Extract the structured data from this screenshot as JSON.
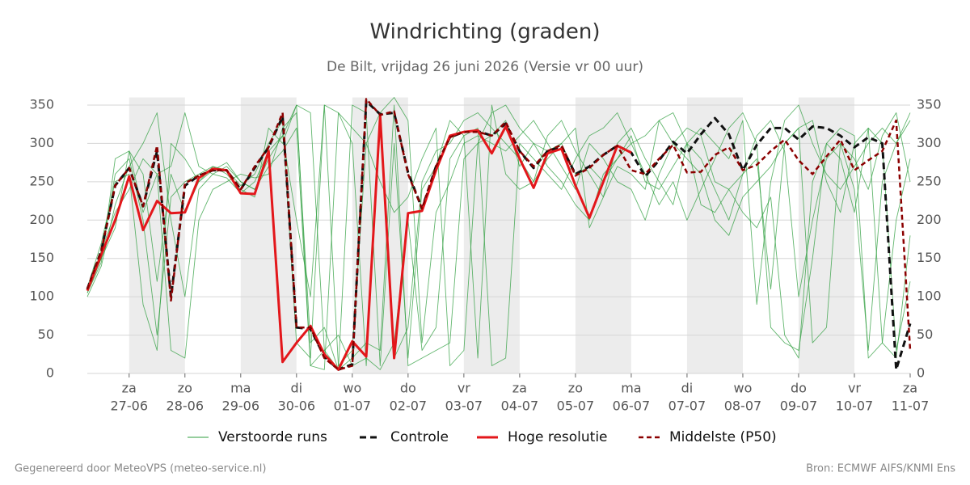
{
  "chart_data": {
    "type": "line",
    "title": "Windrichting (graden)",
    "subtitle": "De Bilt, vrijdag 26 juni 2026 (Versie vr 00 uur)",
    "footer_left": "Gegenereerd door MeteoVPS (meteo-service.nl)",
    "footer_right": "Bron: ECMWF AIFS/KNMI Ens",
    "xlim": [
      -0.75,
      14
    ],
    "ylim": [
      0,
      360
    ],
    "yticks": [
      0,
      50,
      100,
      150,
      200,
      250,
      300,
      350
    ],
    "grid": true,
    "xticks": [
      {
        "value": 0,
        "label": "za",
        "date": "27-06"
      },
      {
        "value": 1,
        "label": "zo",
        "date": "28-06"
      },
      {
        "value": 2,
        "label": "ma",
        "date": "29-06"
      },
      {
        "value": 3,
        "label": "di",
        "date": "30-06"
      },
      {
        "value": 4,
        "label": "wo",
        "date": "01-07"
      },
      {
        "value": 5,
        "label": "do",
        "date": "02-07"
      },
      {
        "value": 6,
        "label": "vr",
        "date": "03-07"
      },
      {
        "value": 7,
        "label": "za",
        "date": "04-07"
      },
      {
        "value": 8,
        "label": "zo",
        "date": "05-07"
      },
      {
        "value": 9,
        "label": "ma",
        "date": "06-07"
      },
      {
        "value": 10,
        "label": "di",
        "date": "07-07"
      },
      {
        "value": 11,
        "label": "wo",
        "date": "08-07"
      },
      {
        "value": 12,
        "label": "do",
        "date": "09-07"
      },
      {
        "value": 13,
        "label": "vr",
        "date": "10-07"
      },
      {
        "value": 14,
        "label": "za",
        "date": "11-07"
      }
    ],
    "x": [
      -0.75,
      -0.5,
      -0.25,
      0,
      0.25,
      0.5,
      0.75,
      1,
      1.25,
      1.5,
      1.75,
      2,
      2.25,
      2.5,
      2.75,
      3,
      3.25,
      3.5,
      3.75,
      4,
      4.25,
      4.5,
      4.75,
      5,
      5.25,
      5.5,
      5.75,
      6,
      6.25,
      6.5,
      6.75,
      7,
      7.25,
      7.5,
      7.75,
      8,
      8.25,
      8.5,
      8.75,
      9,
      9.25,
      9.5,
      9.75,
      10,
      10.25,
      10.5,
      10.75,
      11,
      11.25,
      11.5,
      11.75,
      12,
      12.25,
      12.5,
      12.75,
      13,
      13.25,
      13.5,
      13.75,
      14
    ],
    "perturbed": {
      "name": "Verstoorde runs",
      "color": "#2e9e3e",
      "runs": [
        [
          105,
          150,
          260,
          280,
          200,
          50,
          230,
          250,
          260,
          270,
          265,
          245,
          260,
          300,
          330,
          40,
          20,
          350,
          10,
          30,
          300,
          340,
          20,
          60,
          250,
          290,
          300,
          330,
          340,
          320,
          300,
          280,
          250,
          310,
          330,
          290,
          260,
          230,
          300,
          320,
          280,
          250,
          220,
          300,
          280,
          240,
          200,
          260,
          310,
          330,
          290,
          100,
          200,
          280,
          300,
          240,
          30,
          250,
          300,
          330
        ],
        [
          100,
          140,
          220,
          270,
          300,
          340,
          200,
          100,
          240,
          260,
          270,
          250,
          240,
          280,
          310,
          350,
          340,
          30,
          50,
          10,
          20,
          5,
          40,
          200,
          30,
          60,
          280,
          310,
          320,
          10,
          20,
          300,
          280,
          260,
          240,
          280,
          310,
          320,
          340,
          300,
          260,
          220,
          250,
          200,
          240,
          280,
          320,
          340,
          300,
          60,
          40,
          30,
          150,
          300,
          320,
          310,
          20,
          40,
          200,
          280
        ],
        [
          112,
          170,
          250,
          260,
          90,
          30,
          300,
          280,
          250,
          270,
          260,
          240,
          230,
          320,
          300,
          350,
          10,
          5,
          340,
          320,
          300,
          250,
          210,
          230,
          280,
          320,
          10,
          30,
          300,
          340,
          350,
          320,
          300,
          270,
          250,
          220,
          200,
          260,
          280,
          300,
          310,
          330,
          340,
          300,
          220,
          210,
          240,
          260,
          280,
          110,
          300,
          320,
          330,
          250,
          210,
          300,
          320,
          40,
          20,
          180
        ],
        [
          108,
          160,
          210,
          240,
          280,
          260,
          30,
          20,
          200,
          240,
          250,
          260,
          255,
          260,
          320,
          340,
          40,
          60,
          5,
          350,
          340,
          10,
          300,
          20,
          240,
          270,
          330,
          310,
          20,
          350,
          260,
          240,
          250,
          280,
          300,
          320,
          190,
          230,
          270,
          260,
          240,
          330,
          300,
          280,
          260,
          200,
          180,
          230,
          250,
          270,
          300,
          320,
          40,
          60,
          300,
          280,
          240,
          310,
          340,
          250
        ],
        [
          110,
          150,
          190,
          290,
          260,
          120,
          260,
          210,
          250,
          265,
          275,
          250,
          240,
          270,
          290,
          320,
          10,
          30,
          5,
          20,
          40,
          30,
          350,
          10,
          20,
          30,
          40,
          280,
          300,
          310,
          330,
          270,
          300,
          290,
          300,
          260,
          270,
          250,
          280,
          310,
          250,
          240,
          270,
          300,
          320,
          300,
          280,
          330,
          90,
          250,
          330,
          350,
          300,
          260,
          240,
          270,
          300,
          320,
          300,
          340
        ],
        [
          105,
          145,
          280,
          290,
          210,
          260,
          270,
          340,
          270,
          260,
          255,
          235,
          250,
          290,
          310,
          200,
          100,
          350,
          340,
          300,
          10,
          340,
          360,
          330,
          40,
          210,
          250,
          300,
          310,
          300,
          290,
          310,
          330,
          300,
          270,
          240,
          300,
          280,
          250,
          240,
          200,
          260,
          300,
          320,
          310,
          250,
          240,
          210,
          190,
          230,
          50,
          20,
          250,
          300,
          280,
          210,
          320,
          300,
          30,
          120
        ]
      ]
    },
    "series": [
      {
        "name": "Controle",
        "color": "#111111",
        "dash": "8,5",
        "width": 3,
        "values": [
          110,
          160,
          245,
          268,
          218,
          290,
          100,
          245,
          258,
          265,
          265,
          240,
          268,
          295,
          335,
          60,
          58,
          22,
          5,
          12,
          355,
          338,
          340,
          262,
          215,
          270,
          308,
          315,
          316,
          310,
          326,
          290,
          268,
          290,
          296,
          260,
          270,
          285,
          297,
          288,
          257,
          278,
          302,
          287,
          312,
          333,
          312,
          265,
          298,
          320,
          320,
          305,
          322,
          320,
          310,
          295,
          308,
          300,
          5,
          65
        ]
      },
      {
        "name": "Hoge resolutie",
        "color": "#e3171b",
        "width": 3,
        "values": [
          108,
          155,
          200,
          257,
          187,
          225,
          209,
          210,
          255,
          267,
          265,
          235,
          234,
          290,
          15,
          40,
          62,
          25,
          5,
          42,
          22,
          336,
          20,
          209,
          212,
          265,
          310,
          315,
          317,
          287,
          322,
          280,
          242,
          287,
          293,
          245,
          203,
          250,
          297,
          288,
          null,
          null,
          null,
          null,
          null,
          null,
          null,
          null,
          null,
          null,
          null,
          null,
          null,
          null,
          null,
          null,
          null,
          null,
          null,
          null
        ]
      },
      {
        "name": "Middelste (P50)",
        "color": "#8b0000",
        "dash": "6,4",
        "width": 2.5,
        "values": [
          110,
          160,
          245,
          268,
          218,
          297,
          95,
          248,
          258,
          265,
          265,
          240,
          270,
          295,
          340,
          60,
          60,
          20,
          5,
          10,
          358,
          337,
          342,
          260,
          215,
          270,
          308,
          315,
          315,
          310,
          328,
          290,
          270,
          290,
          298,
          258,
          268,
          285,
          297,
          265,
          260,
          280,
          298,
          262,
          263,
          285,
          295,
          265,
          272,
          290,
          305,
          278,
          260,
          283,
          305,
          265,
          278,
          290,
          330,
          30
        ]
      }
    ]
  }
}
